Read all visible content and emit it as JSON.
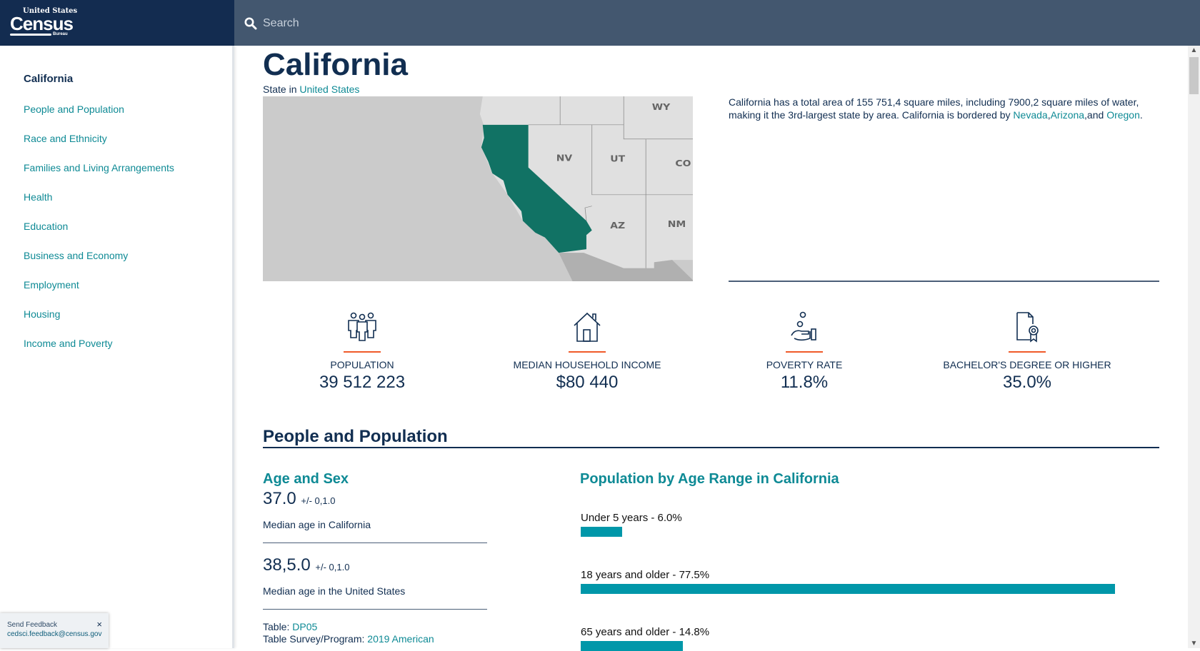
{
  "header": {
    "logo": {
      "top": "United States",
      "main": "Census",
      "bottom": "Bureau"
    },
    "search_placeholder": "Search"
  },
  "sidebar": {
    "items": [
      {
        "label": "California",
        "active": true
      },
      {
        "label": "People and Population"
      },
      {
        "label": "Race and Ethnicity"
      },
      {
        "label": "Families and Living Arrangements"
      },
      {
        "label": "Health"
      },
      {
        "label": "Education"
      },
      {
        "label": "Business and Economy"
      },
      {
        "label": "Employment"
      },
      {
        "label": "Housing"
      },
      {
        "label": "Income and Poverty"
      }
    ]
  },
  "feedback": {
    "title": "Send Feedback",
    "email": "cedsci.feedback@census.gov",
    "close": "×"
  },
  "page": {
    "title": "California",
    "subtitle_prefix": "State in",
    "subtitle_link": "United States"
  },
  "map": {
    "highlight_color": "#117264",
    "labels": [
      "WY",
      "NV",
      "UT",
      "CO",
      "AZ",
      "NM"
    ]
  },
  "description": {
    "text": "California has a total area of 155 751,4 square miles, including 7900,2 square miles of water, making it the 3rd-largest state by area. California is bordered by",
    "links": [
      "Nevada",
      "Arizona",
      "Oregon"
    ],
    "sep1": ",",
    "sep2": ",and",
    "end": "."
  },
  "stats": [
    {
      "icon": "people-icon",
      "label": "POPULATION",
      "value": "39 512 223"
    },
    {
      "icon": "house-icon",
      "label": "MEDIAN HOUSEHOLD INCOME",
      "value": "$80 440"
    },
    {
      "icon": "hand-coin-icon",
      "label": "POVERTY RATE",
      "value": "11.8%"
    },
    {
      "icon": "diploma-icon",
      "label": "BACHELOR'S DEGREE OR HIGHER",
      "value": "35.0%"
    }
  ],
  "section": {
    "title": "People and Population"
  },
  "age_sex": {
    "title": "Age and Sex",
    "ca_value": "37.0",
    "ca_moe": "+/- 0,1.0",
    "ca_label": "Median age in California",
    "us_value": "38,5.0",
    "us_moe": "+/- 0,1.0",
    "us_label": "Median age in the United States",
    "table_label": "Table:",
    "table_link": "DP05",
    "survey_label": "Table Survey/Program:",
    "survey_link": "2019 American"
  },
  "chart_data": {
    "type": "bar",
    "title": "Population by Age Range in California",
    "orientation": "horizontal",
    "color": "#0097a9",
    "categories": [
      "Under 5 years - 6.0%",
      "18 years and older - 77.5%",
      "65 years and older - 14.8%"
    ],
    "values": [
      6.0,
      77.5,
      14.8
    ]
  }
}
